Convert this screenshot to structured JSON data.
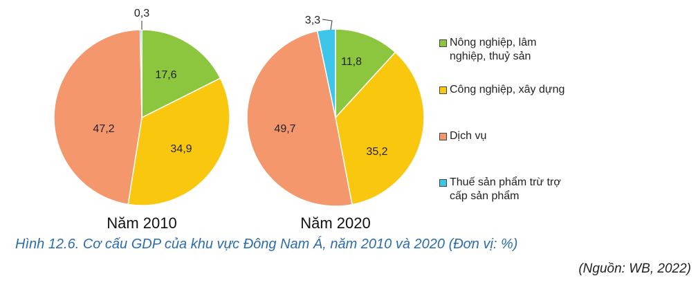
{
  "chart_data": [
    {
      "type": "pie",
      "title": "Năm 2010",
      "categories": [
        "Nông nghiệp, lâm nghiệp, thuỷ sản",
        "Công nghiệp, xây dựng",
        "Dịch vụ",
        "Thuế sản phẩm trừ trợ cấp sản phẩm"
      ],
      "values": [
        17.6,
        34.9,
        47.2,
        0.3
      ],
      "labels": [
        "17,6",
        "34,9",
        "47,2",
        "0,3"
      ]
    },
    {
      "type": "pie",
      "title": "Năm 2020",
      "categories": [
        "Nông nghiệp, lâm nghiệp, thuỷ sản",
        "Công nghiệp, xây dựng",
        "Dịch vụ",
        "Thuế sản phẩm trừ trợ cấp sản phẩm"
      ],
      "values": [
        11.8,
        35.2,
        49.7,
        3.3
      ],
      "labels": [
        "11,8",
        "35,2",
        "49,7",
        "3,3"
      ]
    }
  ],
  "legend": [
    {
      "lines": [
        "Nông nghiệp, lâm",
        "nghiệp, thuỷ sản"
      ],
      "color": "#8cc63f"
    },
    {
      "lines": [
        "Công nghiệp, xây dựng"
      ],
      "color": "#f9c80e"
    },
    {
      "lines": [
        "Dịch vụ"
      ],
      "color": "#f4976c"
    },
    {
      "lines": [
        "Thuế sản phẩm trừ trợ",
        "cấp sản phẩm"
      ],
      "color": "#3ec6ea"
    }
  ],
  "caption": "Hình 12.6. Cơ cấu GDP của khu vực Đông Nam Á, năm 2010 và 2020 (Đơn vị: %)",
  "source": "(Nguồn: WB, 2022)"
}
